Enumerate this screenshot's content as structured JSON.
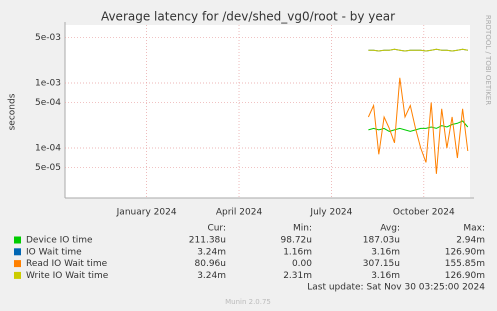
{
  "chart_data": {
    "type": "line",
    "title": "Average latency for /dev/shed_vg0/root - by year",
    "y_label": "seconds",
    "side_text": "RRDTOOL / TOBI OETIKER",
    "log_y": true,
    "grid": true,
    "xlim": [
      -1.15,
      12
    ],
    "xticks": [
      {
        "value": 1.5,
        "label": "January 2024"
      },
      {
        "value": 4.5,
        "label": "April 2024"
      },
      {
        "value": 7.5,
        "label": "July 2024"
      },
      {
        "value": 10.5,
        "label": "October 2024"
      }
    ],
    "ylim": [
      1.7e-05,
      0.0078
    ],
    "yticks": [
      {
        "value": 0.005,
        "label": "5e-03"
      },
      {
        "value": 0.001,
        "label": "1e-03"
      },
      {
        "value": 0.0005,
        "label": "5e-04"
      },
      {
        "value": 0.0001,
        "label": "1e-04"
      },
      {
        "value": 5e-05,
        "label": "5e-05"
      }
    ],
    "x": [
      8.7,
      8.87,
      9.04,
      9.21,
      9.38,
      9.55,
      9.72,
      9.89,
      10.06,
      10.23,
      10.4,
      10.57,
      10.74,
      10.91,
      11.08,
      11.25,
      11.42,
      11.59,
      11.76,
      11.93
    ],
    "legend_columns": [
      "Cur:",
      "Min:",
      "Avg:",
      "Max:"
    ],
    "series": [
      {
        "name": "Device IO time",
        "color": "#00cc00",
        "stats": [
          "211.38u",
          "98.72u",
          "187.03u",
          "2.94m"
        ],
        "values": [
          0.00019,
          0.0002,
          0.00019,
          0.0002,
          0.00018,
          0.00019,
          0.0002,
          0.00019,
          0.00018,
          0.00019,
          0.0002,
          0.0002,
          0.00021,
          0.0002,
          0.00022,
          0.00021,
          0.00023,
          0.00024,
          0.00026,
          0.00021
        ]
      },
      {
        "name": "IO Wait time",
        "color": "#0066b3",
        "stats": [
          "3.24m",
          "1.16m",
          "3.16m",
          "126.90m"
        ],
        "values": [
          0.0032,
          0.0032,
          0.0031,
          0.0032,
          0.0032,
          0.0033,
          0.0032,
          0.0031,
          0.0032,
          0.0032,
          0.0032,
          0.0031,
          0.0032,
          0.0033,
          0.0032,
          0.0032,
          0.0031,
          0.0032,
          0.0033,
          0.0032
        ]
      },
      {
        "name": "Read IO Wait time",
        "color": "#ff8000",
        "stats": [
          "80.96u",
          "0.00",
          "307.15u",
          "155.85m"
        ],
        "values": [
          0.0003,
          0.00045,
          8e-05,
          0.0003,
          0.0002,
          0.00012,
          0.0012,
          0.0003,
          0.00045,
          0.0002,
          0.0001,
          6e-05,
          0.0005,
          4e-05,
          0.0004,
          0.0001,
          0.0003,
          7e-05,
          0.0004,
          9e-05
        ]
      },
      {
        "name": "Write IO Wait time",
        "color": "#cccc00",
        "stats": [
          "3.24m",
          "2.31m",
          "3.16m",
          "126.90m"
        ],
        "values": [
          0.0032,
          0.0032,
          0.0031,
          0.0032,
          0.0032,
          0.0033,
          0.0032,
          0.0031,
          0.0032,
          0.0032,
          0.0032,
          0.0031,
          0.0032,
          0.0033,
          0.0032,
          0.0032,
          0.0031,
          0.0032,
          0.0033,
          0.0032
        ]
      }
    ],
    "last_update": "Last update: Sat Nov 30 03:25:00 2024",
    "footer": "Munin 2.0.75"
  }
}
